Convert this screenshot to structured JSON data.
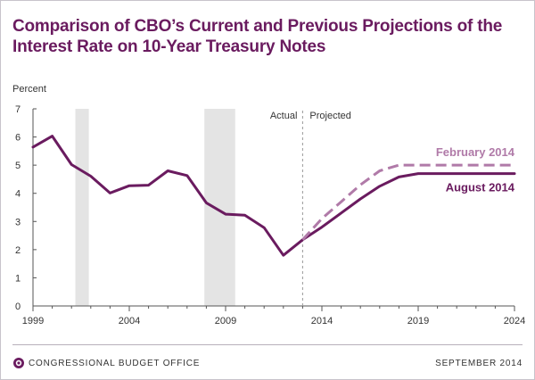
{
  "header": {
    "title": "Comparison of CBO’s Current and Previous Projections of the Interest Rate on 10-Year Treasury Notes"
  },
  "footer": {
    "org": "CONGRESSIONAL BUDGET OFFICE",
    "date": "SEPTEMBER 2014"
  },
  "chart_data": {
    "type": "line",
    "title": "Comparison of CBO’s Current and Previous Projections of the Interest Rate on 10-Year Treasury Notes",
    "ylabel": "Percent",
    "xlabel": "",
    "xlim": [
      1999,
      2024
    ],
    "ylim": [
      0,
      7
    ],
    "x_ticks": [
      1999,
      2004,
      2009,
      2014,
      2019,
      2024
    ],
    "y_ticks": [
      0,
      1,
      2,
      3,
      4,
      5,
      6,
      7
    ],
    "grid": false,
    "recession_shading": [
      [
        2001.2,
        2001.9
      ],
      [
        2007.9,
        2009.5
      ]
    ],
    "divider": {
      "x": 2013.0,
      "left_label": "Actual",
      "right_label": "Projected"
    },
    "colors": {
      "current": "#6a1b5f",
      "previous": "#b07aa8",
      "shade": "#e4e4e4",
      "axis": "#555555"
    },
    "series": [
      {
        "name": "August 2014",
        "style": "solid",
        "points": [
          [
            1999,
            5.64
          ],
          [
            2000,
            6.03
          ],
          [
            2001,
            5.02
          ],
          [
            2002,
            4.61
          ],
          [
            2003,
            4.01
          ],
          [
            2004,
            4.27
          ],
          [
            2005,
            4.29
          ],
          [
            2006,
            4.8
          ],
          [
            2007,
            4.63
          ],
          [
            2008,
            3.66
          ],
          [
            2009,
            3.26
          ],
          [
            2010,
            3.22
          ],
          [
            2011,
            2.78
          ],
          [
            2012,
            1.8
          ],
          [
            2013,
            2.35
          ],
          [
            2014,
            2.8
          ],
          [
            2015,
            3.3
          ],
          [
            2016,
            3.8
          ],
          [
            2017,
            4.25
          ],
          [
            2018,
            4.58
          ],
          [
            2019,
            4.7
          ],
          [
            2020,
            4.7
          ],
          [
            2021,
            4.7
          ],
          [
            2022,
            4.7
          ],
          [
            2023,
            4.7
          ],
          [
            2024,
            4.7
          ]
        ]
      },
      {
        "name": "February 2014",
        "style": "dashed",
        "points": [
          [
            2013,
            2.35
          ],
          [
            2014,
            3.1
          ],
          [
            2015,
            3.7
          ],
          [
            2016,
            4.3
          ],
          [
            2017,
            4.8
          ],
          [
            2018,
            5.0
          ],
          [
            2019,
            5.0
          ],
          [
            2020,
            5.0
          ],
          [
            2021,
            5.0
          ],
          [
            2022,
            5.0
          ],
          [
            2023,
            5.0
          ],
          [
            2024,
            5.0
          ]
        ]
      }
    ]
  }
}
